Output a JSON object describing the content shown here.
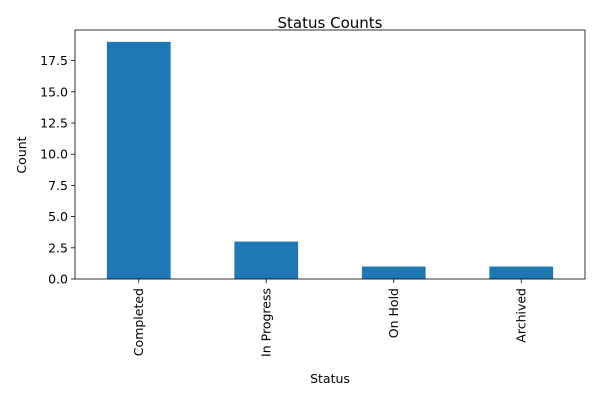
{
  "chart_data": {
    "type": "bar",
    "title": "Status Counts",
    "xlabel": "Status",
    "ylabel": "Count",
    "categories": [
      "Completed",
      "In Progress",
      "On Hold",
      "Archived"
    ],
    "values": [
      19,
      3,
      1,
      1
    ],
    "ylim": [
      0,
      19.95
    ],
    "yticks": [
      "0.0",
      "2.5",
      "5.0",
      "7.5",
      "10.0",
      "12.5",
      "15.0",
      "17.5"
    ],
    "bar_color": "#1f77b4",
    "grid": false,
    "legend": "none"
  }
}
